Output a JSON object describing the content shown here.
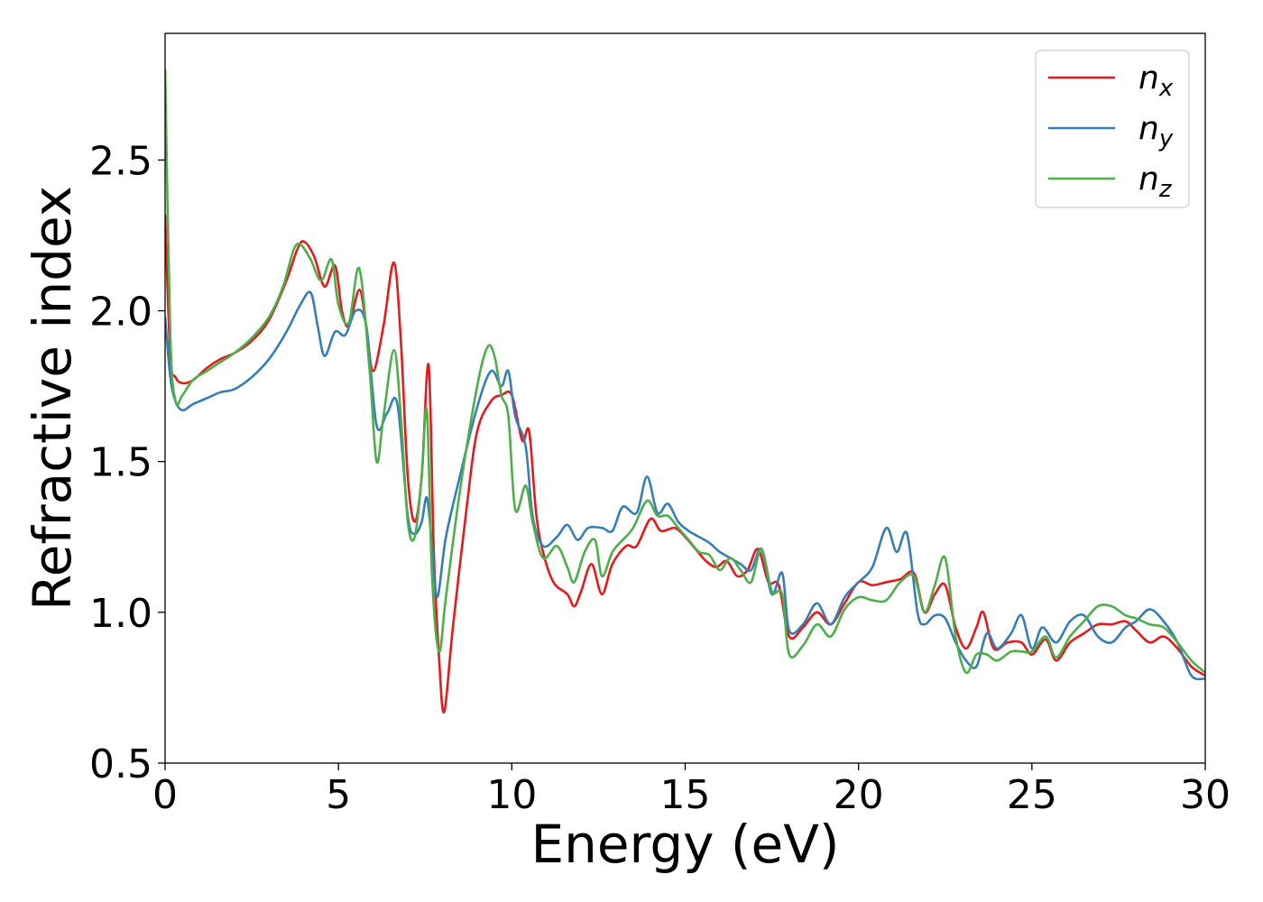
{
  "chart_data": {
    "type": "line",
    "title": "",
    "xlabel": "Energy (eV)",
    "ylabel": "Refractive index",
    "xlim": [
      0,
      30
    ],
    "ylim": [
      0.5,
      2.92
    ],
    "xticks": [
      0,
      5,
      10,
      15,
      20,
      25,
      30
    ],
    "yticks": [
      0.5,
      1.0,
      1.5,
      2.0,
      2.5
    ],
    "grid": false,
    "legend": "top-right",
    "series": [
      {
        "name": "n",
        "subscript": "x",
        "color": "#e41a1c",
        "points": [
          [
            0,
            2.32
          ],
          [
            0.15,
            1.85
          ],
          [
            0.3,
            1.78
          ],
          [
            0.5,
            1.76
          ],
          [
            0.8,
            1.77
          ],
          [
            1.2,
            1.81
          ],
          [
            1.6,
            1.84
          ],
          [
            2.0,
            1.86
          ],
          [
            2.5,
            1.9
          ],
          [
            3.0,
            1.97
          ],
          [
            3.5,
            2.1
          ],
          [
            3.8,
            2.2
          ],
          [
            4.0,
            2.23
          ],
          [
            4.3,
            2.18
          ],
          [
            4.6,
            2.08
          ],
          [
            4.9,
            2.15
          ],
          [
            5.1,
            2.0
          ],
          [
            5.3,
            1.95
          ],
          [
            5.6,
            2.07
          ],
          [
            5.8,
            1.95
          ],
          [
            6.0,
            1.8
          ],
          [
            6.3,
            1.95
          ],
          [
            6.6,
            2.16
          ],
          [
            6.8,
            1.9
          ],
          [
            7.0,
            1.45
          ],
          [
            7.2,
            1.3
          ],
          [
            7.4,
            1.45
          ],
          [
            7.6,
            1.82
          ],
          [
            7.75,
            1.2
          ],
          [
            7.9,
            0.85
          ],
          [
            8.05,
            0.67
          ],
          [
            8.3,
            0.95
          ],
          [
            8.7,
            1.35
          ],
          [
            9.0,
            1.6
          ],
          [
            9.4,
            1.7
          ],
          [
            9.7,
            1.72
          ],
          [
            10.0,
            1.72
          ],
          [
            10.3,
            1.57
          ],
          [
            10.5,
            1.6
          ],
          [
            10.7,
            1.33
          ],
          [
            10.9,
            1.2
          ],
          [
            11.2,
            1.1
          ],
          [
            11.6,
            1.06
          ],
          [
            11.8,
            1.02
          ],
          [
            12.0,
            1.07
          ],
          [
            12.3,
            1.16
          ],
          [
            12.6,
            1.06
          ],
          [
            12.9,
            1.16
          ],
          [
            13.3,
            1.22
          ],
          [
            13.6,
            1.22
          ],
          [
            14.0,
            1.31
          ],
          [
            14.3,
            1.27
          ],
          [
            14.7,
            1.28
          ],
          [
            15.0,
            1.25
          ],
          [
            15.3,
            1.21
          ],
          [
            15.6,
            1.17
          ],
          [
            15.9,
            1.15
          ],
          [
            16.2,
            1.17
          ],
          [
            16.5,
            1.12
          ],
          [
            16.8,
            1.14
          ],
          [
            17.1,
            1.21
          ],
          [
            17.4,
            1.1
          ],
          [
            17.7,
            1.09
          ],
          [
            18.0,
            0.92
          ],
          [
            18.4,
            0.95
          ],
          [
            18.8,
            1.0
          ],
          [
            19.2,
            0.96
          ],
          [
            19.6,
            1.03
          ],
          [
            20.0,
            1.1
          ],
          [
            20.4,
            1.09
          ],
          [
            20.8,
            1.1
          ],
          [
            21.2,
            1.11
          ],
          [
            21.6,
            1.13
          ],
          [
            21.9,
            1.0
          ],
          [
            22.2,
            1.06
          ],
          [
            22.5,
            1.09
          ],
          [
            22.8,
            0.95
          ],
          [
            23.1,
            0.88
          ],
          [
            23.4,
            0.95
          ],
          [
            23.6,
            1.0
          ],
          [
            23.9,
            0.88
          ],
          [
            24.3,
            0.9
          ],
          [
            24.7,
            0.9
          ],
          [
            25.0,
            0.86
          ],
          [
            25.4,
            0.91
          ],
          [
            25.7,
            0.84
          ],
          [
            26.1,
            0.9
          ],
          [
            26.5,
            0.93
          ],
          [
            26.9,
            0.96
          ],
          [
            27.3,
            0.96
          ],
          [
            27.7,
            0.97
          ],
          [
            28.0,
            0.94
          ],
          [
            28.4,
            0.9
          ],
          [
            28.8,
            0.92
          ],
          [
            29.2,
            0.88
          ],
          [
            29.6,
            0.82
          ],
          [
            30.0,
            0.79
          ]
        ]
      },
      {
        "name": "n",
        "subscript": "y",
        "color": "#377eb8",
        "points": [
          [
            0,
            1.98
          ],
          [
            0.15,
            1.78
          ],
          [
            0.3,
            1.7
          ],
          [
            0.5,
            1.67
          ],
          [
            0.8,
            1.69
          ],
          [
            1.2,
            1.71
          ],
          [
            1.6,
            1.73
          ],
          [
            2.0,
            1.74
          ],
          [
            2.5,
            1.78
          ],
          [
            3.0,
            1.84
          ],
          [
            3.5,
            1.93
          ],
          [
            3.9,
            2.02
          ],
          [
            4.2,
            2.06
          ],
          [
            4.4,
            1.95
          ],
          [
            4.6,
            1.85
          ],
          [
            4.9,
            1.93
          ],
          [
            5.2,
            1.92
          ],
          [
            5.5,
            2.0
          ],
          [
            5.8,
            1.95
          ],
          [
            6.1,
            1.62
          ],
          [
            6.4,
            1.66
          ],
          [
            6.7,
            1.69
          ],
          [
            7.0,
            1.32
          ],
          [
            7.2,
            1.26
          ],
          [
            7.4,
            1.3
          ],
          [
            7.55,
            1.38
          ],
          [
            7.7,
            1.22
          ],
          [
            7.85,
            1.05
          ],
          [
            8.1,
            1.25
          ],
          [
            8.5,
            1.45
          ],
          [
            9.0,
            1.68
          ],
          [
            9.4,
            1.8
          ],
          [
            9.7,
            1.75
          ],
          [
            9.9,
            1.8
          ],
          [
            10.1,
            1.65
          ],
          [
            10.4,
            1.55
          ],
          [
            10.6,
            1.32
          ],
          [
            10.9,
            1.22
          ],
          [
            11.3,
            1.25
          ],
          [
            11.6,
            1.29
          ],
          [
            11.9,
            1.24
          ],
          [
            12.2,
            1.28
          ],
          [
            12.6,
            1.28
          ],
          [
            12.9,
            1.27
          ],
          [
            13.2,
            1.35
          ],
          [
            13.6,
            1.33
          ],
          [
            13.9,
            1.45
          ],
          [
            14.2,
            1.33
          ],
          [
            14.5,
            1.36
          ],
          [
            14.8,
            1.3
          ],
          [
            15.1,
            1.27
          ],
          [
            15.4,
            1.25
          ],
          [
            15.7,
            1.23
          ],
          [
            16.0,
            1.2
          ],
          [
            16.3,
            1.18
          ],
          [
            16.6,
            1.16
          ],
          [
            16.9,
            1.14
          ],
          [
            17.2,
            1.21
          ],
          [
            17.5,
            1.06
          ],
          [
            17.8,
            1.13
          ],
          [
            18.0,
            0.94
          ],
          [
            18.4,
            0.96
          ],
          [
            18.8,
            1.03
          ],
          [
            19.2,
            0.96
          ],
          [
            19.6,
            1.05
          ],
          [
            20.0,
            1.1
          ],
          [
            20.4,
            1.15
          ],
          [
            20.8,
            1.28
          ],
          [
            21.1,
            1.2
          ],
          [
            21.4,
            1.26
          ],
          [
            21.7,
            1.0
          ],
          [
            21.9,
            0.96
          ],
          [
            22.2,
            0.99
          ],
          [
            22.5,
            0.98
          ],
          [
            22.8,
            0.9
          ],
          [
            23.1,
            0.84
          ],
          [
            23.4,
            0.82
          ],
          [
            23.7,
            0.93
          ],
          [
            24.0,
            0.88
          ],
          [
            24.4,
            0.93
          ],
          [
            24.7,
            0.99
          ],
          [
            25.0,
            0.88
          ],
          [
            25.3,
            0.95
          ],
          [
            25.7,
            0.9
          ],
          [
            26.1,
            0.97
          ],
          [
            26.5,
            0.99
          ],
          [
            26.9,
            0.92
          ],
          [
            27.3,
            0.9
          ],
          [
            27.7,
            0.95
          ],
          [
            28.0,
            0.97
          ],
          [
            28.4,
            1.01
          ],
          [
            28.8,
            0.97
          ],
          [
            29.2,
            0.9
          ],
          [
            29.6,
            0.79
          ],
          [
            30.0,
            0.78
          ]
        ]
      },
      {
        "name": "n",
        "subscript": "z",
        "color": "#4daf4a",
        "points": [
          [
            0,
            2.8
          ],
          [
            0.15,
            1.92
          ],
          [
            0.3,
            1.7
          ],
          [
            0.5,
            1.72
          ],
          [
            0.8,
            1.77
          ],
          [
            1.2,
            1.8
          ],
          [
            1.6,
            1.83
          ],
          [
            2.0,
            1.86
          ],
          [
            2.5,
            1.91
          ],
          [
            3.0,
            1.98
          ],
          [
            3.4,
            2.08
          ],
          [
            3.7,
            2.2
          ],
          [
            3.9,
            2.22
          ],
          [
            4.2,
            2.17
          ],
          [
            4.5,
            2.1
          ],
          [
            4.8,
            2.17
          ],
          [
            5.0,
            2.02
          ],
          [
            5.3,
            1.96
          ],
          [
            5.6,
            2.14
          ],
          [
            5.9,
            1.8
          ],
          [
            6.1,
            1.5
          ],
          [
            6.3,
            1.65
          ],
          [
            6.6,
            1.87
          ],
          [
            6.8,
            1.65
          ],
          [
            7.0,
            1.3
          ],
          [
            7.2,
            1.25
          ],
          [
            7.4,
            1.45
          ],
          [
            7.55,
            1.67
          ],
          [
            7.7,
            1.12
          ],
          [
            7.9,
            0.87
          ],
          [
            8.1,
            1.05
          ],
          [
            8.5,
            1.4
          ],
          [
            9.0,
            1.75
          ],
          [
            9.3,
            1.88
          ],
          [
            9.5,
            1.85
          ],
          [
            9.7,
            1.72
          ],
          [
            9.9,
            1.65
          ],
          [
            10.1,
            1.34
          ],
          [
            10.4,
            1.42
          ],
          [
            10.6,
            1.3
          ],
          [
            10.9,
            1.18
          ],
          [
            11.3,
            1.22
          ],
          [
            11.6,
            1.15
          ],
          [
            11.8,
            1.1
          ],
          [
            12.1,
            1.2
          ],
          [
            12.4,
            1.24
          ],
          [
            12.6,
            1.12
          ],
          [
            12.9,
            1.2
          ],
          [
            13.2,
            1.24
          ],
          [
            13.5,
            1.28
          ],
          [
            13.9,
            1.37
          ],
          [
            14.2,
            1.32
          ],
          [
            14.5,
            1.32
          ],
          [
            14.8,
            1.28
          ],
          [
            15.1,
            1.24
          ],
          [
            15.4,
            1.2
          ],
          [
            15.7,
            1.19
          ],
          [
            16.0,
            1.14
          ],
          [
            16.3,
            1.18
          ],
          [
            16.6,
            1.14
          ],
          [
            16.9,
            1.1
          ],
          [
            17.2,
            1.21
          ],
          [
            17.5,
            1.07
          ],
          [
            17.8,
            1.06
          ],
          [
            18.0,
            0.86
          ],
          [
            18.4,
            0.89
          ],
          [
            18.8,
            0.96
          ],
          [
            19.2,
            0.92
          ],
          [
            19.6,
            1.01
          ],
          [
            20.0,
            1.05
          ],
          [
            20.4,
            1.04
          ],
          [
            20.8,
            1.04
          ],
          [
            21.2,
            1.1
          ],
          [
            21.6,
            1.12
          ],
          [
            21.9,
            1.0
          ],
          [
            22.2,
            1.09
          ],
          [
            22.5,
            1.18
          ],
          [
            22.8,
            0.92
          ],
          [
            23.1,
            0.8
          ],
          [
            23.4,
            0.86
          ],
          [
            23.7,
            0.86
          ],
          [
            24.0,
            0.84
          ],
          [
            24.4,
            0.87
          ],
          [
            24.7,
            0.87
          ],
          [
            25.0,
            0.87
          ],
          [
            25.4,
            0.92
          ],
          [
            25.7,
            0.85
          ],
          [
            26.1,
            0.92
          ],
          [
            26.5,
            0.97
          ],
          [
            26.9,
            1.02
          ],
          [
            27.3,
            1.02
          ],
          [
            27.7,
            0.99
          ],
          [
            28.0,
            0.98
          ],
          [
            28.4,
            0.96
          ],
          [
            28.8,
            0.95
          ],
          [
            29.2,
            0.9
          ],
          [
            29.6,
            0.84
          ],
          [
            30.0,
            0.8
          ]
        ]
      }
    ]
  }
}
